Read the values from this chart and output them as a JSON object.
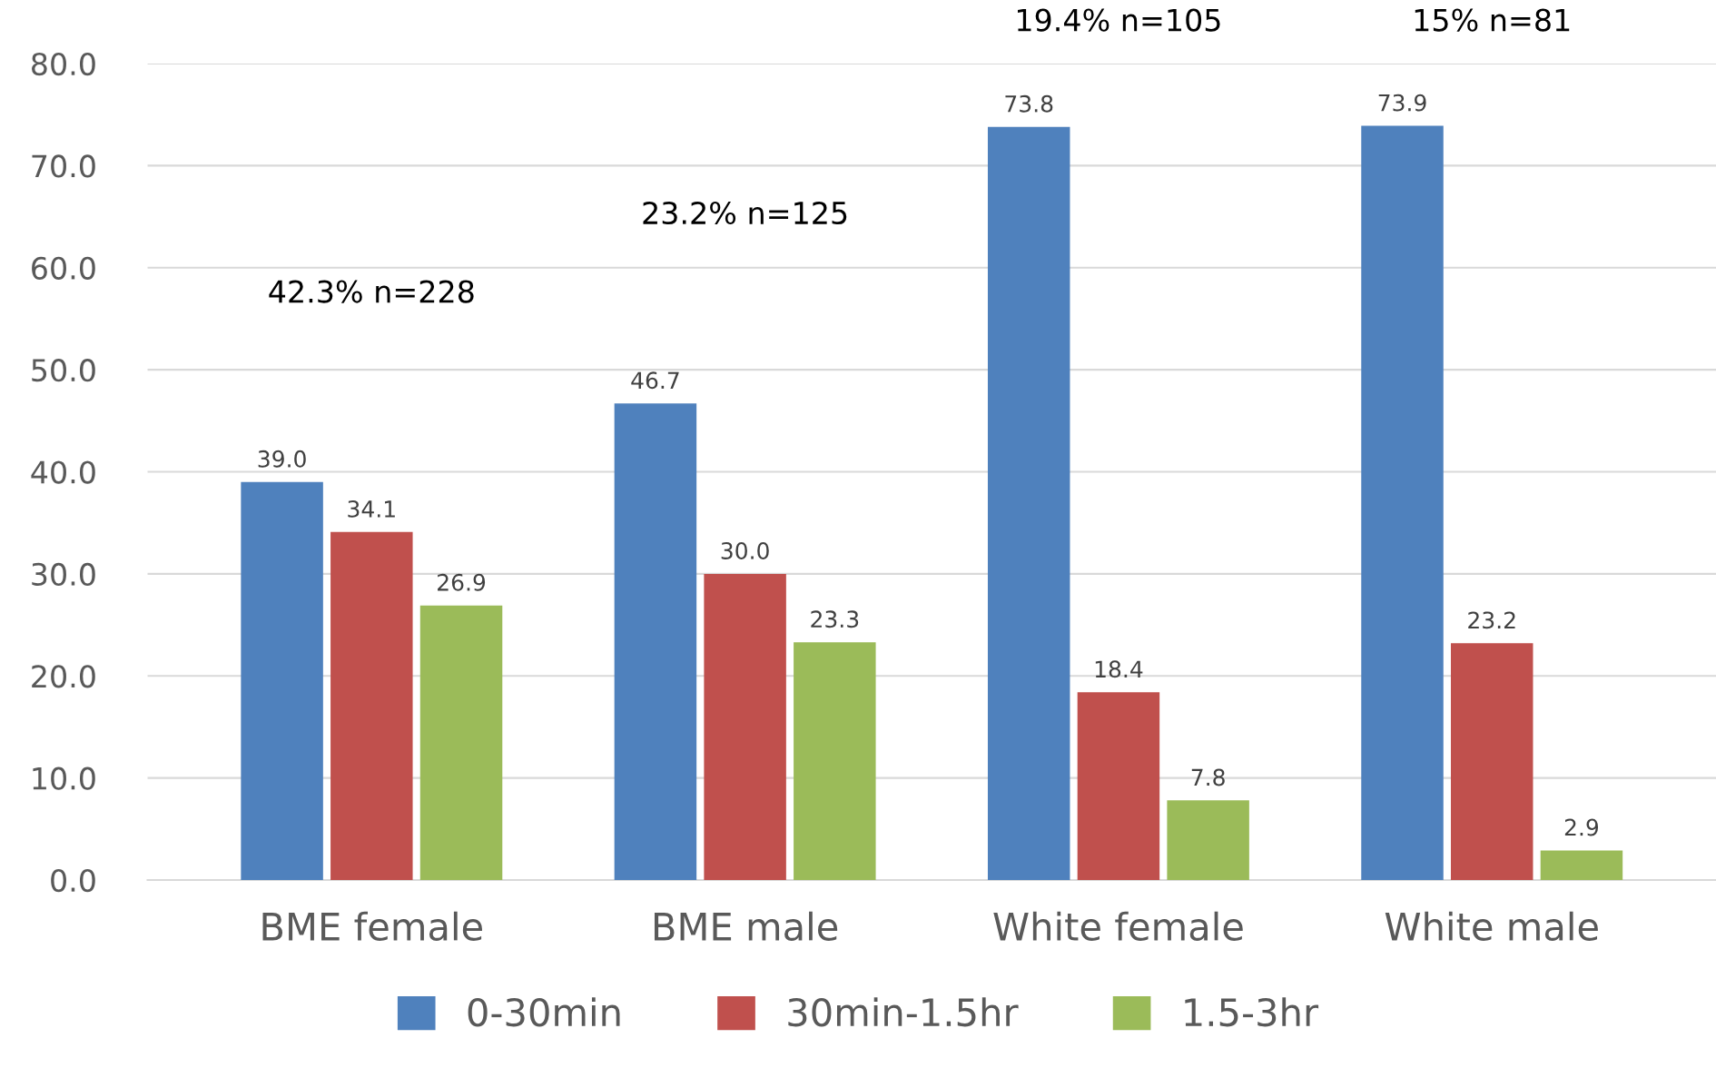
{
  "chart_data": {
    "type": "bar",
    "categories": [
      "BME female",
      "BME male",
      "White female",
      "White male"
    ],
    "series": [
      {
        "name": "0-30min",
        "color": "#4f81bd",
        "values": [
          39.0,
          46.7,
          73.8,
          73.9
        ],
        "value_labels": [
          "39.0",
          "46.7",
          "73.8",
          "73.9"
        ]
      },
      {
        "name": "30min-1.5hr",
        "color": "#c0504d",
        "values": [
          34.1,
          30.0,
          18.4,
          23.2
        ],
        "value_labels": [
          "34.1",
          "30.0",
          "18.4",
          "23.2"
        ]
      },
      {
        "name": "1.5-3hr",
        "color": "#9bbb59",
        "values": [
          26.9,
          23.3,
          7.8,
          2.9
        ],
        "value_labels": [
          "26.9",
          "23.3",
          "7.8",
          "2.9"
        ]
      }
    ],
    "ylim": [
      0,
      80
    ],
    "yticks": [
      {
        "value": 0,
        "label": "0.0"
      },
      {
        "value": 10,
        "label": "10.0"
      },
      {
        "value": 20,
        "label": "20.0"
      },
      {
        "value": 30,
        "label": "30.0"
      },
      {
        "value": 40,
        "label": "40.0"
      },
      {
        "value": 50,
        "label": "50.0"
      },
      {
        "value": 60,
        "label": "60.0"
      },
      {
        "value": 70,
        "label": "70.0"
      },
      {
        "value": 80,
        "label": "80.0"
      }
    ],
    "grid": "y",
    "legend": "bottom",
    "annotations": [
      "42.3% n=228",
      "23.2% n=125",
      "19.4% n=105",
      "15% n=81"
    ]
  }
}
